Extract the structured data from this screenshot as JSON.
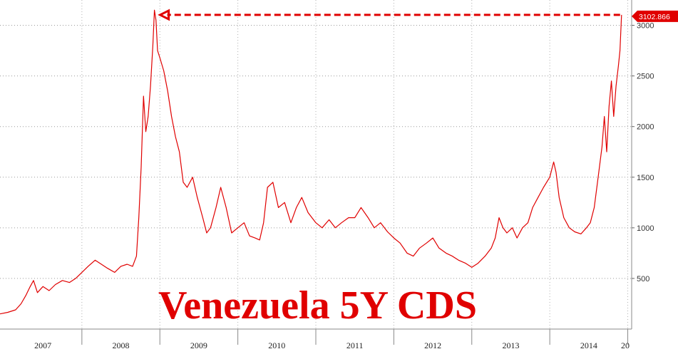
{
  "chart_data": {
    "type": "line",
    "title": "Venezuela 5Y CDS",
    "xlabel": "",
    "ylabel": "",
    "ylim": [
      0,
      3250
    ],
    "xlim": [
      2006.95,
      2015.05
    ],
    "yticks": [
      500,
      1000,
      1500,
      2000,
      2500,
      3000
    ],
    "year_labels": [
      "2007",
      "2008",
      "2009",
      "2010",
      "2011",
      "2012",
      "2013",
      "2014",
      "20"
    ],
    "last_value_label": "3102.866",
    "last_value": 3102.866,
    "grid": true,
    "legend": "none",
    "series": [
      {
        "color": "#e00000",
        "points": [
          [
            2006.95,
            150
          ],
          [
            2007.05,
            165
          ],
          [
            2007.15,
            190
          ],
          [
            2007.22,
            250
          ],
          [
            2007.28,
            330
          ],
          [
            2007.33,
            410
          ],
          [
            2007.38,
            480
          ],
          [
            2007.43,
            360
          ],
          [
            2007.5,
            420
          ],
          [
            2007.58,
            380
          ],
          [
            2007.66,
            440
          ],
          [
            2007.75,
            480
          ],
          [
            2007.84,
            460
          ],
          [
            2007.92,
            500
          ],
          [
            2008.0,
            560
          ],
          [
            2008.08,
            620
          ],
          [
            2008.17,
            680
          ],
          [
            2008.25,
            640
          ],
          [
            2008.33,
            600
          ],
          [
            2008.42,
            560
          ],
          [
            2008.5,
            620
          ],
          [
            2008.58,
            640
          ],
          [
            2008.65,
            620
          ],
          [
            2008.7,
            720
          ],
          [
            2008.73,
            1100
          ],
          [
            2008.76,
            1600
          ],
          [
            2008.79,
            2300
          ],
          [
            2008.82,
            1950
          ],
          [
            2008.85,
            2100
          ],
          [
            2008.88,
            2400
          ],
          [
            2008.91,
            2800
          ],
          [
            2008.93,
            3150
          ],
          [
            2008.95,
            3050
          ],
          [
            2008.97,
            2750
          ],
          [
            2009.0,
            2680
          ],
          [
            2009.05,
            2550
          ],
          [
            2009.1,
            2350
          ],
          [
            2009.15,
            2100
          ],
          [
            2009.2,
            1900
          ],
          [
            2009.25,
            1750
          ],
          [
            2009.3,
            1450
          ],
          [
            2009.35,
            1400
          ],
          [
            2009.42,
            1500
          ],
          [
            2009.48,
            1300
          ],
          [
            2009.55,
            1100
          ],
          [
            2009.6,
            950
          ],
          [
            2009.65,
            1000
          ],
          [
            2009.72,
            1200
          ],
          [
            2009.78,
            1400
          ],
          [
            2009.85,
            1200
          ],
          [
            2009.92,
            950
          ],
          [
            2010.0,
            1000
          ],
          [
            2010.08,
            1050
          ],
          [
            2010.15,
            920
          ],
          [
            2010.22,
            900
          ],
          [
            2010.28,
            880
          ],
          [
            2010.33,
            1050
          ],
          [
            2010.38,
            1400
          ],
          [
            2010.45,
            1450
          ],
          [
            2010.52,
            1200
          ],
          [
            2010.6,
            1250
          ],
          [
            2010.68,
            1050
          ],
          [
            2010.75,
            1200
          ],
          [
            2010.82,
            1300
          ],
          [
            2010.9,
            1150
          ],
          [
            2011.0,
            1050
          ],
          [
            2011.08,
            1000
          ],
          [
            2011.17,
            1080
          ],
          [
            2011.25,
            1000
          ],
          [
            2011.33,
            1050
          ],
          [
            2011.42,
            1100
          ],
          [
            2011.5,
            1100
          ],
          [
            2011.58,
            1200
          ],
          [
            2011.67,
            1100
          ],
          [
            2011.75,
            1000
          ],
          [
            2011.83,
            1050
          ],
          [
            2011.92,
            960
          ],
          [
            2012.0,
            900
          ],
          [
            2012.08,
            850
          ],
          [
            2012.17,
            750
          ],
          [
            2012.25,
            720
          ],
          [
            2012.33,
            800
          ],
          [
            2012.42,
            850
          ],
          [
            2012.5,
            900
          ],
          [
            2012.58,
            800
          ],
          [
            2012.67,
            750
          ],
          [
            2012.75,
            720
          ],
          [
            2012.83,
            680
          ],
          [
            2012.92,
            650
          ],
          [
            2013.0,
            610
          ],
          [
            2013.08,
            650
          ],
          [
            2013.17,
            720
          ],
          [
            2013.25,
            800
          ],
          [
            2013.3,
            900
          ],
          [
            2013.35,
            1100
          ],
          [
            2013.4,
            1000
          ],
          [
            2013.45,
            950
          ],
          [
            2013.52,
            1000
          ],
          [
            2013.58,
            900
          ],
          [
            2013.65,
            1000
          ],
          [
            2013.72,
            1050
          ],
          [
            2013.78,
            1200
          ],
          [
            2013.85,
            1300
          ],
          [
            2013.92,
            1400
          ],
          [
            2014.0,
            1500
          ],
          [
            2014.05,
            1650
          ],
          [
            2014.08,
            1550
          ],
          [
            2014.12,
            1300
          ],
          [
            2014.18,
            1100
          ],
          [
            2014.25,
            1000
          ],
          [
            2014.32,
            960
          ],
          [
            2014.4,
            940
          ],
          [
            2014.47,
            1000
          ],
          [
            2014.52,
            1050
          ],
          [
            2014.57,
            1200
          ],
          [
            2014.62,
            1500
          ],
          [
            2014.67,
            1800
          ],
          [
            2014.7,
            2100
          ],
          [
            2014.73,
            1750
          ],
          [
            2014.76,
            2200
          ],
          [
            2014.79,
            2450
          ],
          [
            2014.82,
            2100
          ],
          [
            2014.85,
            2400
          ],
          [
            2014.88,
            2600
          ],
          [
            2014.9,
            2750
          ],
          [
            2014.92,
            3102.866
          ]
        ]
      }
    ]
  }
}
